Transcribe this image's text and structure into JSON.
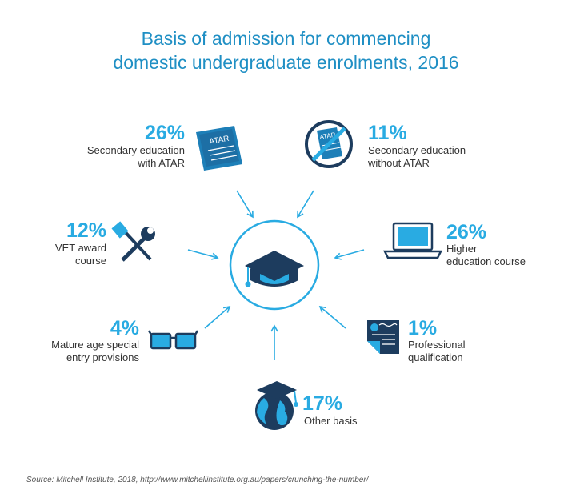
{
  "title": {
    "line1": "Basis of admission for commencing",
    "line2": "domestic undergraduate enrolments, 2016"
  },
  "icons": {
    "atar_paper_text": "ATAR"
  },
  "chart_data": {
    "type": "table",
    "title": "Basis of admission for commencing domestic undergraduate enrolments, 2016",
    "unit": "%",
    "categories": [
      "Secondary education with ATAR",
      "Secondary education without ATAR",
      "VET award course",
      "Higher education course",
      "Mature age special entry provisions",
      "Professional qualification",
      "Other basis"
    ],
    "values": [
      26,
      11,
      12,
      26,
      4,
      1,
      17
    ],
    "items": [
      {
        "value": "26%",
        "label_line1": "Secondary education",
        "label_line2": "with ATAR",
        "icon": "atar-document-icon"
      },
      {
        "value": "11%",
        "label_line1": "Secondary education",
        "label_line2": "without ATAR",
        "icon": "no-atar-icon"
      },
      {
        "value": "12%",
        "label_line1": "VET award",
        "label_line2": "course",
        "icon": "tools-icon"
      },
      {
        "value": "26%",
        "label_line1": "Higher",
        "label_line2": "education course",
        "icon": "laptop-icon"
      },
      {
        "value": "4%",
        "label_line1": "Mature age special",
        "label_line2": "entry provisions",
        "icon": "glasses-icon"
      },
      {
        "value": "1%",
        "label_line1": "Professional",
        "label_line2": "qualification",
        "icon": "certificate-icon"
      },
      {
        "value": "17%",
        "label_line1": "Other basis",
        "label_line2": "",
        "icon": "globe-graduate-icon"
      }
    ],
    "colors": {
      "accent": "#29abe2",
      "dark": "#1d3c5e",
      "title": "#1f8fc4"
    }
  },
  "source": "Source: Mitchell Institute, 2018, http://www.mitchellinstitute.org.au/papers/crunching-the-number/"
}
